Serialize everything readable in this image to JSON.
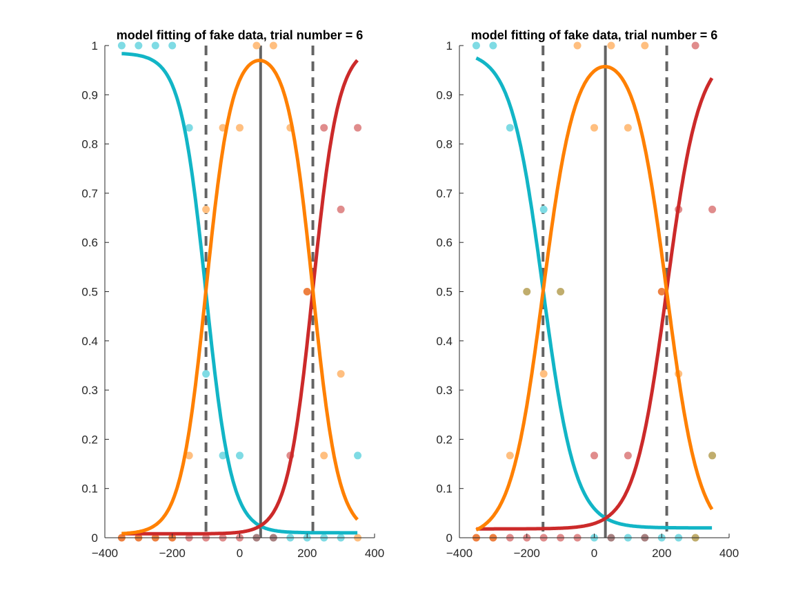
{
  "figure": {
    "background": "#ffffff"
  },
  "colors": {
    "cyan": "#12b5c6",
    "orange": "#ff8000",
    "red": "#cc2a2a",
    "gray_line": "#646464",
    "cyan_point": "#7fdbe4",
    "orange_point": "#ffbf80",
    "red_point": "#e08c8c",
    "olive_point": "#c0ad6d",
    "dark_orange_point": "#ee8040",
    "mauve_point": "#a88080"
  },
  "chart_data": [
    {
      "type": "line",
      "title": "model fitting of fake data, trial number = 6",
      "xlabel": "",
      "ylabel": "",
      "xlim": [
        -400,
        400
      ],
      "ylim": [
        0,
        1
      ],
      "xticks": [
        -400,
        -200,
        0,
        200,
        400
      ],
      "yticks": [
        0,
        0.1,
        0.2,
        0.3,
        0.4,
        0.5,
        0.6,
        0.7,
        0.8,
        0.9,
        1
      ],
      "grid": false,
      "legend": "none",
      "x_range": [
        -350,
        350
      ],
      "curves": [
        {
          "color": "cyan",
          "kind": "decreasing",
          "lo": 0.01,
          "hi": 0.985,
          "center": -100,
          "scale": 38
        },
        {
          "color": "red",
          "kind": "increasing",
          "lo": 0.008,
          "hi": 1.0,
          "center": 217,
          "scale": 38
        },
        {
          "color": "orange",
          "kind": "middle",
          "lo": 0.007,
          "hi": 1.0,
          "c1": -100,
          "c2": 217,
          "scale": 38
        }
      ],
      "vlines": [
        {
          "x": -100,
          "style": "dashed"
        },
        {
          "x": 62,
          "style": "solid"
        },
        {
          "x": 217,
          "style": "dashed"
        }
      ],
      "points": [
        {
          "x": -350,
          "y": 1,
          "color": "cyan_point"
        },
        {
          "x": -300,
          "y": 1,
          "color": "cyan_point"
        },
        {
          "x": -250,
          "y": 1,
          "color": "cyan_point"
        },
        {
          "x": -200,
          "y": 1,
          "color": "cyan_point"
        },
        {
          "x": -150,
          "y": 0.833,
          "color": "cyan_point"
        },
        {
          "x": -100,
          "y": 0.333,
          "color": "cyan_point"
        },
        {
          "x": -50,
          "y": 0.167,
          "color": "cyan_point"
        },
        {
          "x": 0,
          "y": 0.167,
          "color": "cyan_point"
        },
        {
          "x": 350,
          "y": 0.167,
          "color": "cyan_point"
        },
        {
          "x": 50,
          "y": 1,
          "color": "orange_point"
        },
        {
          "x": 100,
          "y": 1,
          "color": "orange_point"
        },
        {
          "x": -50,
          "y": 0.833,
          "color": "orange_point"
        },
        {
          "x": 0,
          "y": 0.833,
          "color": "orange_point"
        },
        {
          "x": 150,
          "y": 0.833,
          "color": "orange_point"
        },
        {
          "x": -100,
          "y": 0.667,
          "color": "orange_point"
        },
        {
          "x": -150,
          "y": 0.167,
          "color": "orange_point"
        },
        {
          "x": 250,
          "y": 0.167,
          "color": "orange_point"
        },
        {
          "x": 300,
          "y": 0.333,
          "color": "orange_point"
        },
        {
          "x": 250,
          "y": 0.833,
          "color": "red_point"
        },
        {
          "x": 350,
          "y": 0.833,
          "color": "red_point"
        },
        {
          "x": 300,
          "y": 0.667,
          "color": "red_point"
        },
        {
          "x": 150,
          "y": 0.167,
          "color": "red_point"
        },
        {
          "x": 200,
          "y": 0.5,
          "color": "dark_orange_point"
        },
        {
          "x": -350,
          "y": 0,
          "color": "dark_orange_point"
        },
        {
          "x": -300,
          "y": 0,
          "color": "dark_orange_point"
        },
        {
          "x": -250,
          "y": 0,
          "color": "dark_orange_point"
        },
        {
          "x": -200,
          "y": 0,
          "color": "dark_orange_point"
        },
        {
          "x": -150,
          "y": 0,
          "color": "red_point"
        },
        {
          "x": -100,
          "y": 0,
          "color": "red_point"
        },
        {
          "x": -50,
          "y": 0,
          "color": "red_point"
        },
        {
          "x": 0,
          "y": 0,
          "color": "red_point"
        },
        {
          "x": 50,
          "y": 0,
          "color": "mauve_point"
        },
        {
          "x": 100,
          "y": 0,
          "color": "mauve_point"
        },
        {
          "x": 150,
          "y": 0,
          "color": "cyan_point"
        },
        {
          "x": 200,
          "y": 0,
          "color": "cyan_point"
        },
        {
          "x": 250,
          "y": 0,
          "color": "cyan_point"
        },
        {
          "x": 300,
          "y": 0,
          "color": "cyan_point"
        },
        {
          "x": 350,
          "y": 0,
          "color": "orange_point"
        }
      ]
    },
    {
      "type": "line",
      "title": "model fitting of fake data, trial number = 6",
      "xlabel": "",
      "ylabel": "",
      "xlim": [
        -400,
        400
      ],
      "ylim": [
        0,
        1
      ],
      "xticks": [
        -400,
        -200,
        0,
        200,
        400
      ],
      "yticks": [
        0,
        0.1,
        0.2,
        0.3,
        0.4,
        0.5,
        0.6,
        0.7,
        0.8,
        0.9,
        1
      ],
      "grid": false,
      "legend": "none",
      "x_range": [
        -350,
        350
      ],
      "curves": [
        {
          "color": "cyan",
          "kind": "decreasing",
          "lo": 0.02,
          "hi": 0.99,
          "center": -152,
          "scale": 48
        },
        {
          "color": "red",
          "kind": "increasing",
          "lo": 0.018,
          "hi": 0.99,
          "center": 215,
          "scale": 48
        },
        {
          "color": "orange",
          "kind": "middle",
          "lo": 0.0,
          "hi": 1.0,
          "c1": -152,
          "c2": 215,
          "scale": 48
        }
      ],
      "vlines": [
        {
          "x": -152,
          "style": "dashed"
        },
        {
          "x": 33,
          "style": "solid"
        },
        {
          "x": 215,
          "style": "dashed"
        }
      ],
      "points": [
        {
          "x": -350,
          "y": 1,
          "color": "cyan_point"
        },
        {
          "x": -300,
          "y": 1,
          "color": "cyan_point"
        },
        {
          "x": -250,
          "y": 0.833,
          "color": "cyan_point"
        },
        {
          "x": -150,
          "y": 0.667,
          "color": "cyan_point"
        },
        {
          "x": -50,
          "y": 1,
          "color": "orange_point"
        },
        {
          "x": 50,
          "y": 1,
          "color": "orange_point"
        },
        {
          "x": 150,
          "y": 1,
          "color": "orange_point"
        },
        {
          "x": 0,
          "y": 0.833,
          "color": "orange_point"
        },
        {
          "x": 100,
          "y": 0.833,
          "color": "orange_point"
        },
        {
          "x": -150,
          "y": 0.333,
          "color": "orange_point"
        },
        {
          "x": -250,
          "y": 0.167,
          "color": "orange_point"
        },
        {
          "x": 250,
          "y": 0.333,
          "color": "orange_point"
        },
        {
          "x": 300,
          "y": 1,
          "color": "red_point"
        },
        {
          "x": 250,
          "y": 0.667,
          "color": "red_point"
        },
        {
          "x": 350,
          "y": 0.667,
          "color": "red_point"
        },
        {
          "x": 0,
          "y": 0.167,
          "color": "red_point"
        },
        {
          "x": 100,
          "y": 0.167,
          "color": "red_point"
        },
        {
          "x": -200,
          "y": 0.5,
          "color": "olive_point"
        },
        {
          "x": -100,
          "y": 0.5,
          "color": "olive_point"
        },
        {
          "x": 350,
          "y": 0.167,
          "color": "olive_point"
        },
        {
          "x": 200,
          "y": 0.5,
          "color": "dark_orange_point"
        },
        {
          "x": -350,
          "y": 0,
          "color": "dark_orange_point"
        },
        {
          "x": -300,
          "y": 0,
          "color": "dark_orange_point"
        },
        {
          "x": -250,
          "y": 0,
          "color": "red_point"
        },
        {
          "x": -200,
          "y": 0,
          "color": "red_point"
        },
        {
          "x": -150,
          "y": 0,
          "color": "red_point"
        },
        {
          "x": -100,
          "y": 0,
          "color": "red_point"
        },
        {
          "x": -50,
          "y": 0,
          "color": "red_point"
        },
        {
          "x": 0,
          "y": 0,
          "color": "cyan_point"
        },
        {
          "x": 50,
          "y": 0,
          "color": "mauve_point"
        },
        {
          "x": 100,
          "y": 0,
          "color": "cyan_point"
        },
        {
          "x": 150,
          "y": 0,
          "color": "mauve_point"
        },
        {
          "x": 200,
          "y": 0,
          "color": "cyan_point"
        },
        {
          "x": 250,
          "y": 0,
          "color": "cyan_point"
        },
        {
          "x": 300,
          "y": 0,
          "color": "olive_point"
        }
      ]
    }
  ]
}
